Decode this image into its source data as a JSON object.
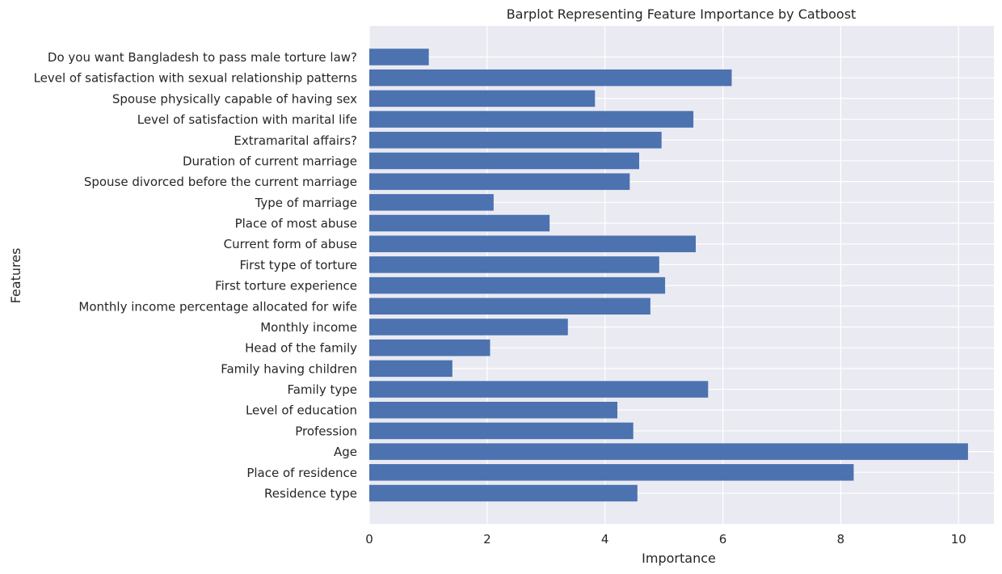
{
  "chart_data": {
    "type": "bar",
    "orientation": "horizontal",
    "title": "Barplot Representing Feature Importance by Catboost",
    "xlabel": "Importance",
    "ylabel": "Features",
    "xlim": [
      0,
      10.6
    ],
    "xticks": [
      0,
      2,
      4,
      6,
      8,
      10
    ],
    "grid": true,
    "bar_color": "#4c72b0",
    "background_color": "#eaeaf2",
    "grid_color": "#ffffff",
    "categories": [
      "Do you want Bangladesh to pass male torture law?",
      "Level of satisfaction with sexual relationship patterns",
      "Spouse physically capable of having sex",
      "Level of satisfaction with marital life",
      "Extramarital affairs?",
      "Duration of current marriage",
      "Spouse divorced before the current marriage",
      "Type of marriage",
      "Place of most abuse",
      "Current form of abuse",
      "First type of torture",
      "First torture experience",
      "Monthly income percentage allocated for wife",
      "Monthly income",
      "Head of the family",
      "Family having children",
      "Family type",
      "Level of education",
      "Profession",
      "Age",
      "Place of residence",
      "Residence type"
    ],
    "values": [
      1.01,
      6.15,
      3.83,
      5.5,
      4.96,
      4.58,
      4.42,
      2.11,
      3.06,
      5.54,
      4.92,
      5.02,
      4.77,
      3.37,
      2.05,
      1.41,
      5.75,
      4.21,
      4.48,
      10.16,
      8.22,
      4.55
    ]
  }
}
